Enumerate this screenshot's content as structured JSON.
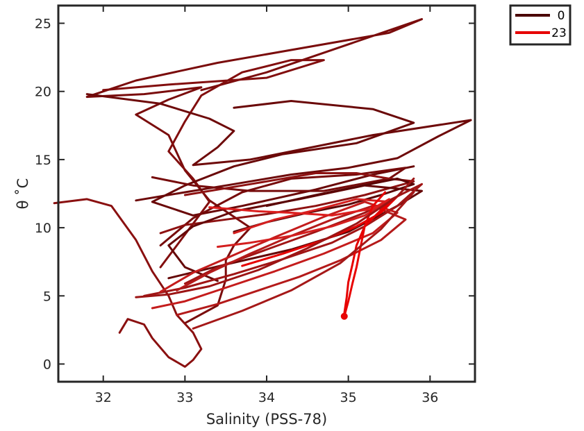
{
  "chart_data": {
    "type": "line",
    "title": "",
    "xlabel": "Salinity (PSS-78)",
    "ylabel": "θ ˚C",
    "xlim": [
      31.45,
      36.55
    ],
    "ylim": [
      -1.3,
      26.3
    ],
    "xticks": [
      32,
      33,
      34,
      35,
      36
    ],
    "yticks": [
      0,
      5,
      10,
      15,
      20,
      25
    ],
    "grid": false,
    "legend_position": "outside top-right",
    "legend": [
      {
        "label": "0",
        "color": "#4a0000"
      },
      {
        "label": "23",
        "color": "#e60000"
      }
    ],
    "series": [
      {
        "color": "#7a0c0c",
        "x": [
          33.2,
          34.0,
          35.9,
          35.5,
          33.4,
          32.4,
          31.8,
          32.5,
          33.2,
          32.8,
          32.4,
          32.8,
          33.0,
          33.3,
          33.8,
          33.6,
          33.5,
          33.5,
          33.4,
          33.0
        ],
        "y": [
          20.1,
          21.4,
          25.3,
          24.3,
          22.1,
          20.8,
          19.6,
          19.8,
          20.3,
          19.4,
          18.3,
          16.8,
          14.2,
          12.0,
          10.0,
          8.7,
          7.6,
          6.2,
          4.3,
          3.0
        ]
      },
      {
        "color": "#820e0e",
        "x": [
          32.0,
          32.8,
          34.0,
          34.7,
          34.3,
          33.7,
          33.2,
          33.0,
          32.8,
          33.1,
          33.3,
          33.0,
          32.7
        ],
        "y": [
          20.1,
          20.5,
          21.0,
          22.3,
          22.3,
          21.4,
          19.7,
          17.8,
          15.6,
          13.6,
          11.9,
          9.5,
          7.1
        ]
      },
      {
        "color": "#6e0a0a",
        "x": [
          31.8,
          32.7,
          33.3,
          33.6,
          33.4,
          33.1,
          33.8,
          35.3,
          36.5,
          36.1,
          35.6,
          35.0,
          34.3,
          33.6,
          33.0,
          32.4
        ],
        "y": [
          19.8,
          19.1,
          18.0,
          17.1,
          15.9,
          14.6,
          15.0,
          16.8,
          17.9,
          16.7,
          15.1,
          14.4,
          13.9,
          13.2,
          12.6,
          12.0
        ]
      },
      {
        "color": "#6a0808",
        "x": [
          33.6,
          34.3,
          35.3,
          35.8,
          35.1,
          34.2,
          33.6,
          33.0,
          32.6,
          33.1,
          33.7,
          34.6,
          35.3,
          35.8
        ],
        "y": [
          18.8,
          19.3,
          18.7,
          17.7,
          16.2,
          15.4,
          14.5,
          13.1,
          11.9,
          10.9,
          11.6,
          12.8,
          13.9,
          14.5
        ]
      },
      {
        "color": "#8a1010",
        "x": [
          31.4,
          31.8,
          32.1,
          32.4,
          32.6,
          32.8,
          32.9,
          33.1,
          33.2,
          33.1,
          33.0,
          32.8,
          32.6,
          32.5,
          32.3,
          32.2
        ],
        "y": [
          11.8,
          12.1,
          11.6,
          9.1,
          6.8,
          5.0,
          3.6,
          2.3,
          1.1,
          0.3,
          -0.2,
          0.5,
          1.9,
          2.9,
          3.3,
          2.3
        ]
      },
      {
        "color": "#760b0b",
        "x": [
          32.6,
          33.1,
          33.8,
          34.7,
          35.5,
          35.7,
          35.1,
          34.3,
          33.7,
          33.1,
          32.7
        ],
        "y": [
          13.7,
          13.1,
          12.7,
          12.7,
          13.6,
          14.4,
          13.9,
          13.6,
          12.6,
          10.7,
          8.7
        ]
      },
      {
        "color": "#8e1212",
        "x": [
          33.0,
          33.8,
          34.6,
          35.1,
          35.5,
          35.8,
          35.2,
          34.6,
          34.0,
          33.5,
          33.0,
          32.7
        ],
        "y": [
          12.4,
          13.2,
          14.0,
          14.0,
          13.6,
          13.4,
          12.4,
          11.6,
          11.0,
          10.6,
          10.2,
          9.6
        ]
      },
      {
        "color": "#650707",
        "x": [
          32.8,
          33.5,
          34.3,
          35.0,
          35.6,
          35.9,
          35.2,
          34.4,
          33.6,
          33.1,
          32.8,
          33.0,
          33.4
        ],
        "y": [
          6.3,
          7.3,
          8.4,
          9.7,
          11.6,
          12.7,
          13.1,
          12.1,
          11.2,
          10.1,
          8.7,
          7.1,
          6.1
        ]
      },
      {
        "color": "#5a0505",
        "x": [
          33.6,
          34.0,
          34.5,
          35.0,
          35.4,
          35.8,
          35.6,
          35.1,
          34.6,
          34.0
        ],
        "y": [
          9.7,
          10.4,
          11.1,
          11.7,
          12.4,
          13.2,
          13.6,
          13.0,
          12.4,
          11.6
        ]
      },
      {
        "color": "#a01515",
        "x": [
          32.5,
          33.0,
          33.6,
          34.2,
          34.8,
          35.2,
          35.6,
          35.9,
          35.7,
          35.2,
          34.6,
          34.0,
          33.4,
          33.0
        ],
        "y": [
          5.0,
          5.6,
          6.6,
          7.7,
          8.9,
          10.1,
          11.6,
          13.2,
          12.6,
          11.1,
          9.7,
          8.4,
          7.1,
          5.9
        ]
      },
      {
        "color": "#b41a1a",
        "x": [
          32.9,
          33.4,
          33.9,
          34.4,
          34.9,
          35.4,
          35.7,
          35.3,
          34.8,
          34.3,
          33.8,
          33.3,
          32.9
        ],
        "y": [
          3.6,
          4.4,
          5.4,
          6.4,
          7.6,
          9.1,
          10.6,
          11.6,
          10.6,
          9.4,
          8.1,
          6.7,
          5.4
        ]
      },
      {
        "color": "#c41c1c",
        "x": [
          32.6,
          33.0,
          33.5,
          34.1,
          34.7,
          35.3,
          35.6,
          35.2,
          34.7,
          34.1,
          33.6,
          33.1,
          32.7
        ],
        "y": [
          4.1,
          4.6,
          5.6,
          6.8,
          8.1,
          9.6,
          11.1,
          11.9,
          10.8,
          9.3,
          8.0,
          6.7,
          5.3
        ]
      },
      {
        "color": "#d41f1f",
        "x": [
          33.4,
          33.8,
          34.3,
          34.8,
          35.2,
          35.5,
          35.1,
          34.6,
          34.1,
          33.6
        ],
        "y": [
          8.6,
          8.9,
          9.4,
          10.1,
          10.9,
          11.9,
          12.1,
          11.3,
          10.6,
          9.6
        ]
      },
      {
        "color": "#dc1e1e",
        "x": [
          33.3,
          33.9,
          34.3,
          34.8,
          35.3,
          35.5
        ],
        "y": [
          11.5,
          11.2,
          11.1,
          10.9,
          11.4,
          12.1
        ]
      },
      {
        "color": "#e60000",
        "x": [
          33.7,
          34.2,
          34.7,
          35.1,
          35.4,
          35.6,
          35.4,
          35.2,
          35.1,
          35.05,
          35.0,
          34.98,
          34.95
        ],
        "y": [
          7.2,
          8.1,
          9.1,
          10.1,
          11.1,
          12.3,
          11.3,
          10.1,
          8.7,
          7.3,
          6.0,
          4.9,
          3.7
        ]
      },
      {
        "color": "#e80505",
        "x": [
          35.45,
          35.3,
          35.2,
          35.15,
          35.1,
          35.05,
          35.0,
          34.95
        ],
        "y": [
          12.6,
          11.6,
          10.1,
          8.6,
          7.1,
          5.9,
          4.6,
          3.5
        ]
      },
      {
        "color": "#9c1414",
        "x": [
          32.4,
          32.8,
          33.3,
          33.9,
          34.5,
          35.1,
          35.6,
          35.8
        ],
        "y": [
          4.9,
          5.1,
          5.7,
          6.9,
          8.5,
          10.3,
          12.3,
          13.6
        ]
      },
      {
        "color": "#a51818",
        "x": [
          33.1,
          33.7,
          34.3,
          34.9,
          35.4,
          35.8
        ],
        "y": [
          2.6,
          3.9,
          5.4,
          7.4,
          9.9,
          12.6
        ]
      }
    ]
  }
}
